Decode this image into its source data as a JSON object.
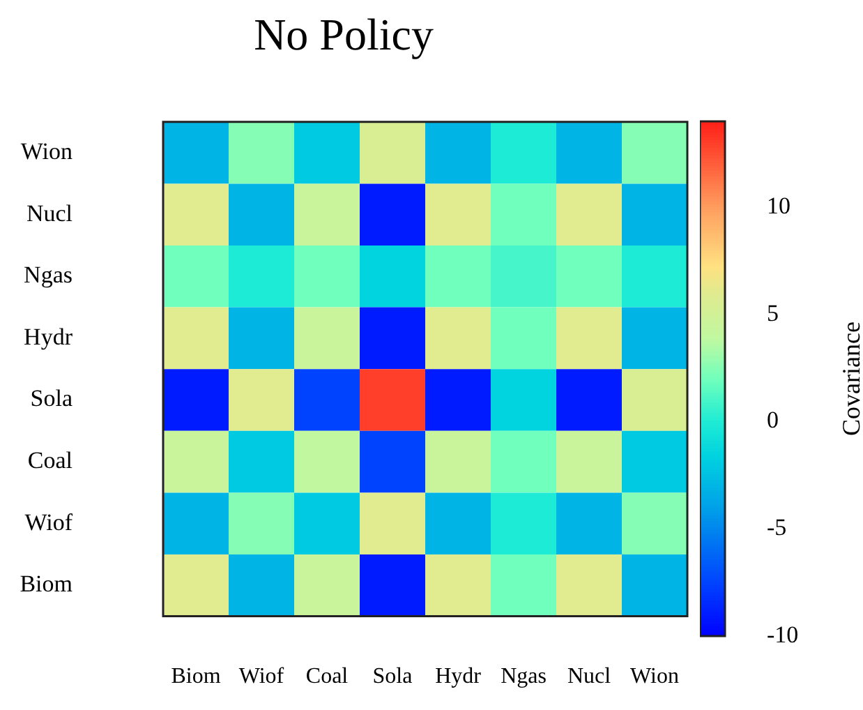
{
  "chart_data": {
    "type": "heatmap",
    "title": "No Policy",
    "clabel": "Covariance",
    "categories": [
      "Biom",
      "Wiof",
      "Coal",
      "Sola",
      "Hydr",
      "Ngas",
      "Nucl",
      "Wion"
    ],
    "y_categories": [
      "Wion",
      "Nucl",
      "Ngas",
      "Hydr",
      "Sola",
      "Coal",
      "Wiof",
      "Biom"
    ],
    "cells": [
      [
        -3,
        2.5,
        -2,
        5.5,
        -3,
        0,
        -3,
        2.5
      ],
      [
        6,
        -3,
        4.5,
        -9,
        6,
        2,
        6,
        -3
      ],
      [
        2,
        0,
        2,
        -1.5,
        2,
        1,
        2,
        0
      ],
      [
        6,
        -3,
        4.5,
        -9,
        6,
        2,
        6,
        -3
      ],
      [
        -9,
        6,
        -7.5,
        13,
        -9,
        -1.5,
        -9,
        5.5
      ],
      [
        4.5,
        -2,
        4,
        -7.5,
        4.5,
        2,
        4.5,
        -2
      ],
      [
        -3,
        2.5,
        -2,
        6,
        -3,
        0,
        -3,
        2.5
      ],
      [
        6,
        -3,
        4.5,
        -9,
        6,
        2,
        6,
        -3
      ]
    ],
    "clim": [
      -10,
      14
    ],
    "cticks": [
      -10,
      -5,
      0,
      5,
      10
    ]
  }
}
